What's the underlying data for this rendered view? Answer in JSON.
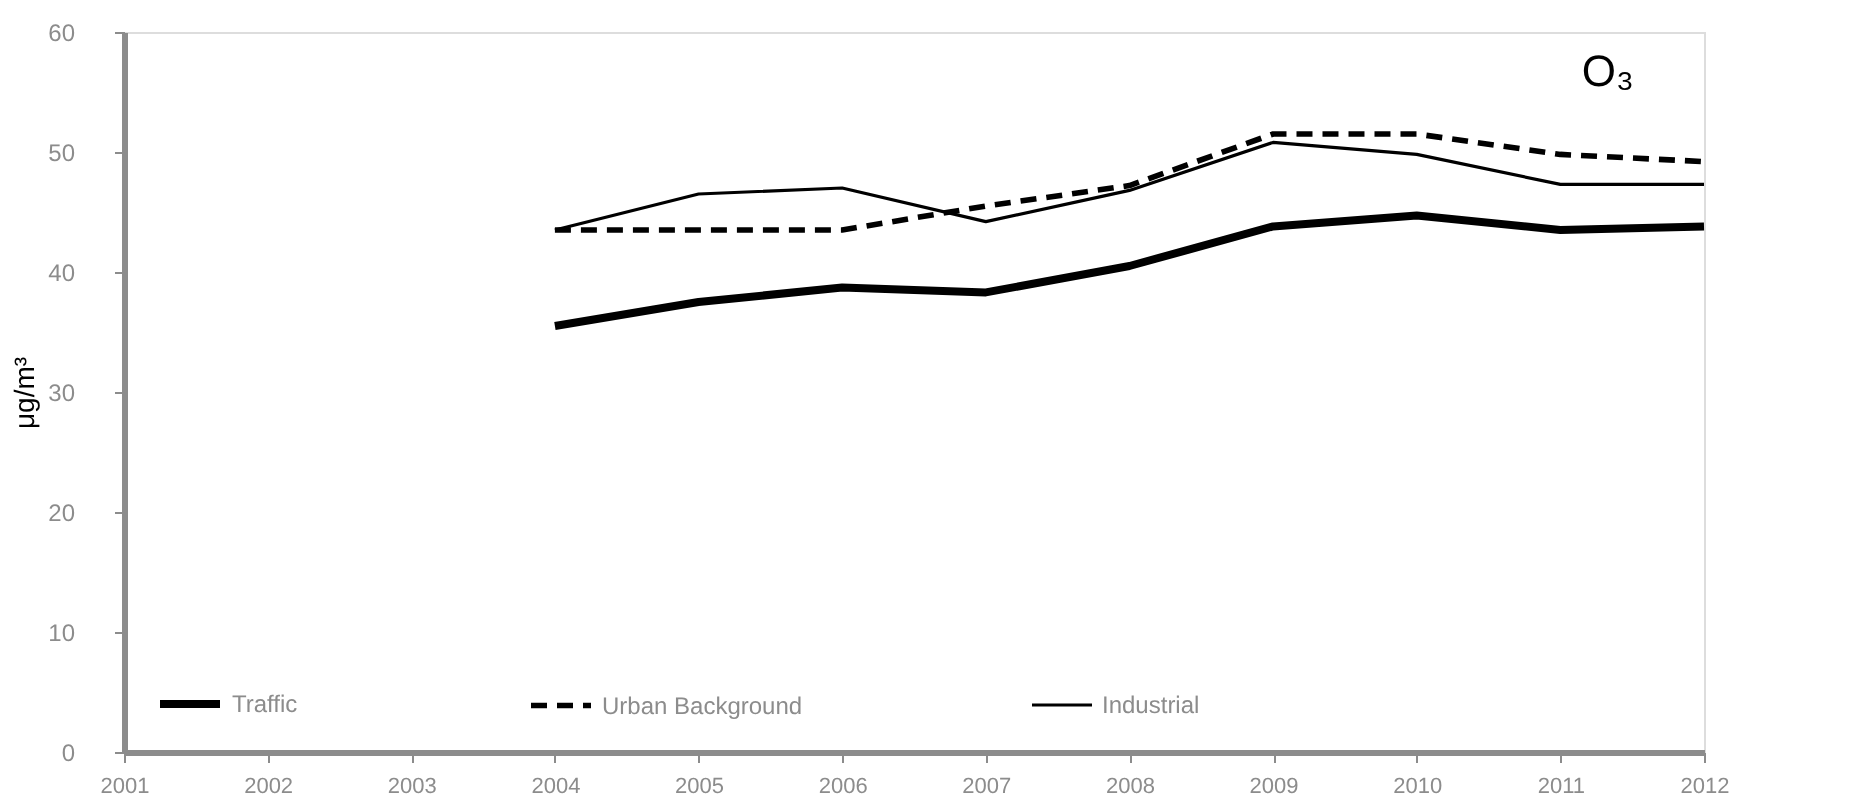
{
  "chart_data": {
    "type": "line",
    "ylabel": "μg/m³",
    "annotations": [
      "O₃"
    ],
    "x": [
      2004,
      2005,
      2006,
      2007,
      2008,
      2009,
      2010,
      2011,
      2012
    ],
    "xlim": [
      2001,
      2012
    ],
    "xticks": [
      2001,
      2002,
      2003,
      2004,
      2005,
      2006,
      2007,
      2008,
      2009,
      2010,
      2011,
      2012
    ],
    "ylim": [
      0,
      60
    ],
    "yticks": [
      0,
      10,
      20,
      30,
      40,
      50,
      60
    ],
    "grid": false,
    "legend": "bottom",
    "marker": "none",
    "series": [
      {
        "name": "Traffic",
        "color": "#000000",
        "line_style": "solid",
        "values": [
          35.5,
          37.5,
          38.7,
          38.3,
          40.5,
          43.8,
          44.7,
          43.5,
          43.8
        ]
      },
      {
        "name": "Urban Background",
        "color": "#000000",
        "line_style": "dashed",
        "values": [
          43.5,
          43.5,
          43.5,
          45.5,
          47.2,
          51.5,
          51.5,
          49.8,
          49.2
        ]
      },
      {
        "name": "Industrial",
        "color": "#000000",
        "line_style": "solid",
        "values": [
          43.5,
          46.5,
          47.0,
          44.2,
          46.8,
          50.8,
          49.8,
          47.3,
          47.3
        ]
      }
    ]
  }
}
